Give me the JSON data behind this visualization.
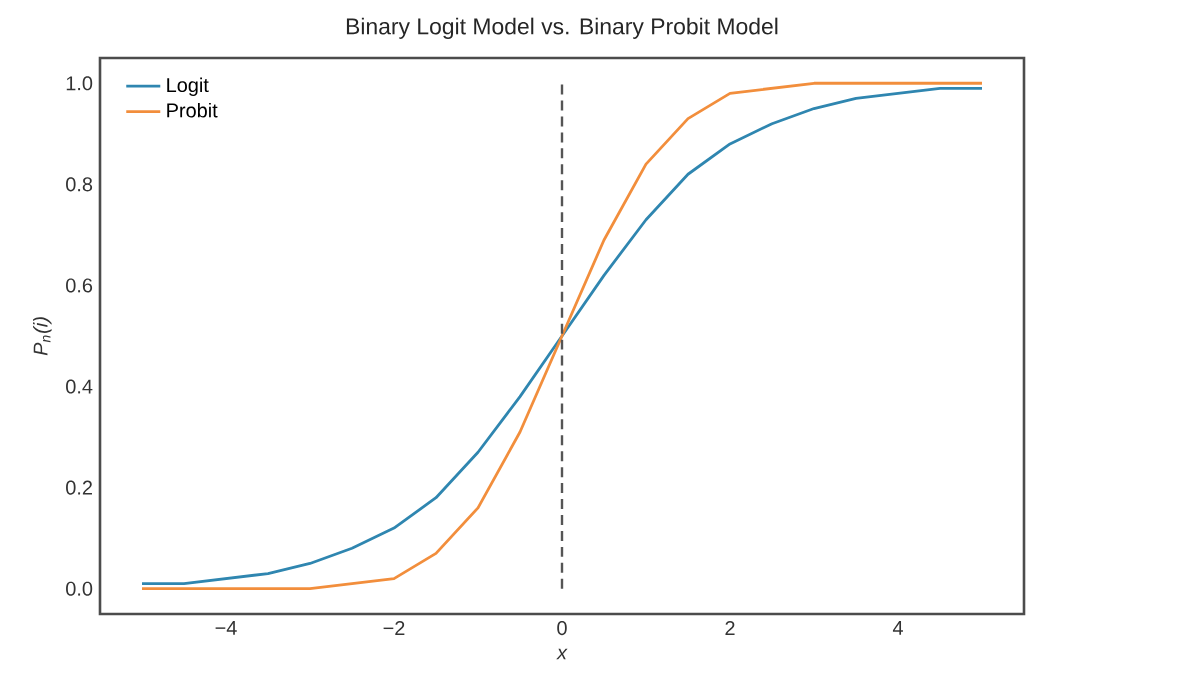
{
  "chart_data": {
    "type": "line",
    "title": "Binary Logit Model vs. Binary Probit Model",
    "xlabel": "x",
    "ylabel": "P$_{n}$(i)",
    "x": [
      -5,
      -4.5,
      -4,
      -3.5,
      -3,
      -2.5,
      -2,
      -1.5,
      -1,
      -0.5,
      0,
      0.5,
      1,
      1.5,
      2,
      2.5,
      3,
      3.5,
      4,
      4.5,
      5
    ],
    "series": [
      {
        "name": "Logit",
        "color": "#2f86b0",
        "values": [
          0.01,
          0.01,
          0.02,
          0.03,
          0.05,
          0.08,
          0.12,
          0.18,
          0.27,
          0.38,
          0.5,
          0.62,
          0.73,
          0.82,
          0.88,
          0.92,
          0.95,
          0.97,
          0.98,
          0.99,
          0.99
        ]
      },
      {
        "name": "Probit",
        "color": "#f28e3c",
        "values": [
          0,
          0,
          0,
          0,
          0,
          0.01,
          0.02,
          0.07,
          0.16,
          0.31,
          0.5,
          0.69,
          0.84,
          0.93,
          0.98,
          0.99,
          1,
          1,
          1,
          1,
          1
        ]
      }
    ],
    "xlim": [
      -5.5,
      5.5
    ],
    "ylim": [
      -0.05,
      1.05
    ],
    "xticks": [
      {
        "value": -4,
        "label": "−4"
      },
      {
        "value": -2,
        "label": "−2"
      },
      0,
      2,
      {
        "value": 4,
        "label": "4"
      }
    ],
    "yticks": [
      {
        "value": 0,
        "label": "0.0"
      },
      {
        "value": 0.2,
        "label": "0.2"
      },
      {
        "value": 0.4,
        "label": "0.4"
      },
      {
        "value": 0.6,
        "label": "0.6"
      },
      {
        "value": 0.8,
        "label": "0.8"
      },
      {
        "value": 1,
        "label": "1.0"
      }
    ],
    "ref_lines": [
      {
        "axis": "x",
        "value": 0,
        "color": "#555555",
        "line_style": "dashed"
      }
    ],
    "legend": "top left",
    "grid": false,
    "marker": "none",
    "line_style": "solid"
  }
}
